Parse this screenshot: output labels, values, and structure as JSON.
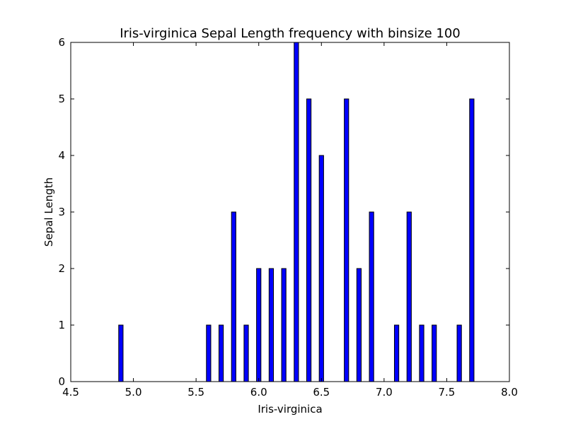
{
  "chart_data": {
    "type": "bar",
    "title": "Iris-virginica Sepal Length frequency with binsize 100",
    "xlabel": "Iris-virginica",
    "ylabel": "Sepal Length",
    "xlim": [
      4.5,
      8.0
    ],
    "ylim": [
      0,
      6
    ],
    "xticks": [
      "4.5",
      "5.0",
      "5.5",
      "6.0",
      "6.5",
      "7.0",
      "7.5",
      "8.0"
    ],
    "yticks": [
      "0",
      "1",
      "2",
      "3",
      "4",
      "5",
      "6"
    ],
    "grid": false,
    "bar_color": "#0000ff",
    "x": [
      4.9,
      5.6,
      5.7,
      5.8,
      5.9,
      6.0,
      6.1,
      6.2,
      6.3,
      6.4,
      6.5,
      6.7,
      6.8,
      6.9,
      7.1,
      7.2,
      7.3,
      7.4,
      7.6,
      7.7
    ],
    "values": [
      1,
      1,
      1,
      3,
      1,
      2,
      2,
      2,
      6,
      5,
      4,
      5,
      2,
      3,
      1,
      3,
      1,
      1,
      1,
      5
    ]
  }
}
